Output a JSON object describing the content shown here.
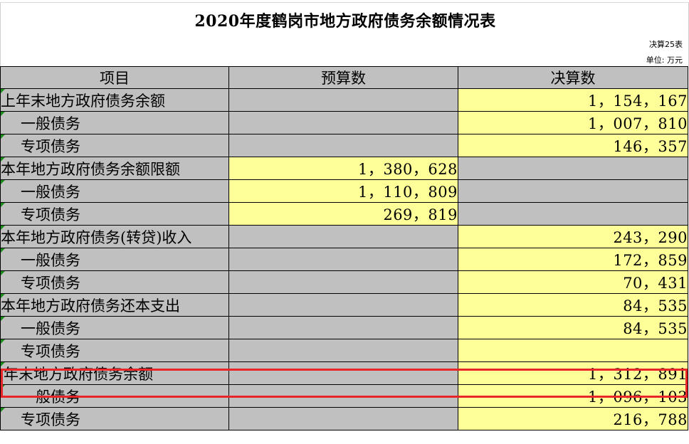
{
  "title": "2020年度鹤岗市地方政府债务余额情况表",
  "form_no": "决算25表",
  "unit": "单位: 万元",
  "columns": {
    "item": "项目",
    "budget": "预算数",
    "final": "决算数"
  },
  "rows": [
    {
      "label": "上年末地方政府债务余额",
      "budget": "",
      "final": "1，154，167"
    },
    {
      "label": "一般债务",
      "budget": "",
      "final": "1，007，810"
    },
    {
      "label": "专项债务",
      "budget": "",
      "final": "146，357"
    },
    {
      "label": "本年地方政府债务余额限额",
      "budget": "1，380，628",
      "final": ""
    },
    {
      "label": "一般债务",
      "budget": "1，110，809",
      "final": ""
    },
    {
      "label": "专项债务",
      "budget": "269，819",
      "final": ""
    },
    {
      "label": "本年地方政府债务(转贷)收入",
      "budget": "",
      "final": "243，290"
    },
    {
      "label": "一般债务",
      "budget": "",
      "final": "172，859"
    },
    {
      "label": "专项债务",
      "budget": "",
      "final": "70，431"
    },
    {
      "label": "本年地方政府债务还本支出",
      "budget": "",
      "final": "84，535"
    },
    {
      "label": "一般债务",
      "budget": "",
      "final": "84，535"
    },
    {
      "label": "专项债务",
      "budget": "",
      "final": ""
    },
    {
      "label": "年末地方政府债务余额",
      "budget": "",
      "final": "1，312，891"
    },
    {
      "label": "一般债务",
      "budget": "",
      "final": "1，096，103"
    },
    {
      "label": "专项债务",
      "budget": "",
      "final": "216，788"
    }
  ],
  "colors": {
    "header_gray": "#c0c0c0",
    "input_yellow": "#ffff99",
    "highlight_red": "#e8262a",
    "comment_marker_green": "#1a8c1a"
  }
}
